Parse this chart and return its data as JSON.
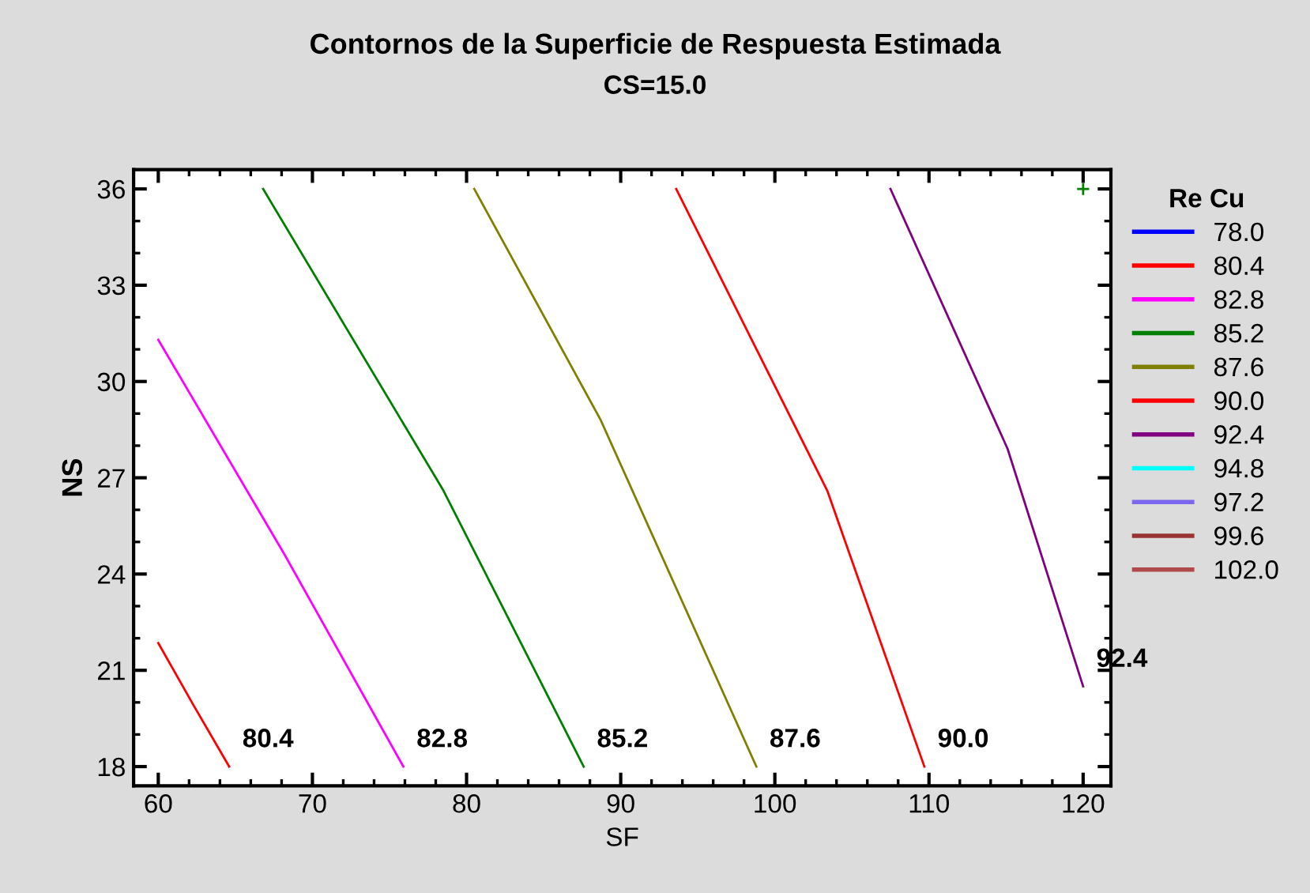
{
  "chart_data": {
    "type": "line",
    "title": "Contornos de la Superficie de Respuesta Estimada",
    "subtitle": "CS=15.0",
    "xlabel": "SF",
    "ylabel": "NS",
    "legend_title": "Re Cu",
    "legend": "right",
    "xlim": [
      58.4,
      121.8
    ],
    "ylim": [
      17.4,
      36.6
    ],
    "xticks": [
      60,
      70,
      80,
      90,
      100,
      110,
      120
    ],
    "yticks": [
      18,
      21,
      24,
      27,
      30,
      33,
      36
    ],
    "grid": false,
    "series": [
      {
        "name": "78.0",
        "color": "#0000ff"
      },
      {
        "name": "80.4",
        "color": "#ff0000",
        "x": [
          60,
          62.3,
          64.6
        ],
        "values": [
          21.85,
          19.9,
          18
        ]
      },
      {
        "name": "82.8",
        "color": "#ff00ff",
        "x": [
          60,
          68.2,
          75.9
        ],
        "values": [
          31.3,
          24.6,
          18
        ]
      },
      {
        "name": "85.2",
        "color": "#008000",
        "x": [
          66.8,
          78.5,
          87.6
        ],
        "values": [
          36,
          26.6,
          18
        ]
      },
      {
        "name": "87.6",
        "color": "#808000",
        "x": [
          80.5,
          88.7,
          98.8
        ],
        "values": [
          36,
          28.8,
          18
        ]
      },
      {
        "name": "90.0",
        "color": "#ff0000",
        "x": [
          93.6,
          103.4,
          109.7
        ],
        "values": [
          36,
          26.6,
          18
        ]
      },
      {
        "name": "92.4",
        "color": "#800080",
        "x": [
          107.5,
          115.1,
          120
        ],
        "values": [
          36,
          27.9,
          20.5
        ]
      },
      {
        "name": "94.8",
        "color": "#00ffff"
      },
      {
        "name": "97.2",
        "color": "#7b68ee"
      },
      {
        "name": "99.6",
        "color": "#993333"
      },
      {
        "name": "102.0",
        "color": "#b04a4a"
      },
      {
        "type": "scatter",
        "color": "#008000",
        "marker": "cross",
        "x": [
          120
        ],
        "values": [
          36
        ]
      }
    ],
    "annotations": [
      {
        "text": "80.4",
        "x": 64.6,
        "y": 18
      },
      {
        "text": "82.8",
        "x": 75.9,
        "y": 18
      },
      {
        "text": "85.2",
        "x": 87.6,
        "y": 18
      },
      {
        "text": "87.6",
        "x": 98.8,
        "y": 18
      },
      {
        "text": "90.0",
        "x": 109.7,
        "y": 18
      },
      {
        "text": "92.4",
        "x": 120,
        "y": 20.5
      }
    ]
  }
}
